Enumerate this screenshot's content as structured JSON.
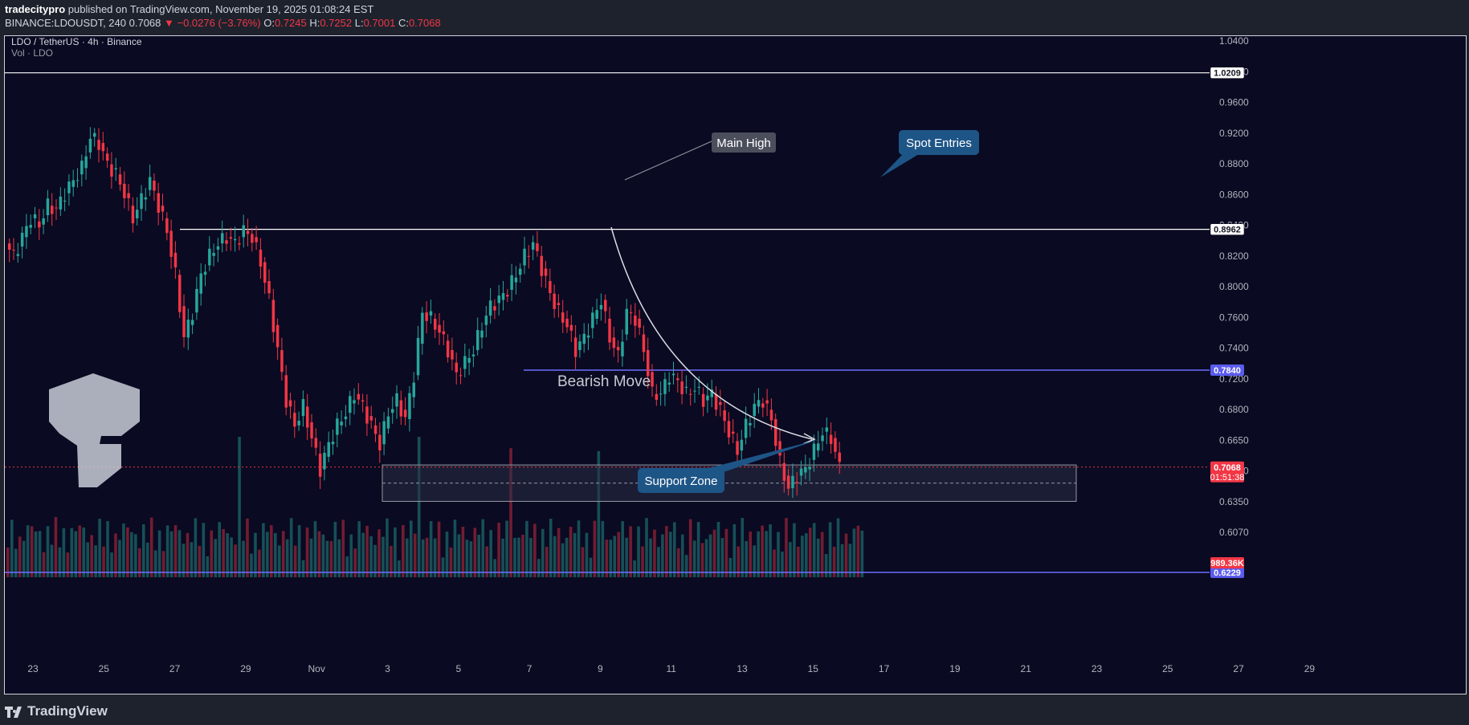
{
  "header": {
    "author": "tradecitypro",
    "published_text": " published on TradingView.com, November 19, 2025 01:08:24 EST",
    "symbol_line": "BINANCE:LDOUSDT, 240",
    "price": "0.7068",
    "change": "▼ −0.0276 (−3.76%)",
    "ohlc": {
      "o_label": "O:",
      "o": "0.7245",
      "h_label": "H:",
      "h": "0.7252",
      "l_label": "L:",
      "l": "0.7001",
      "c_label": "C:",
      "c": "0.7068"
    }
  },
  "legend": {
    "title": "LDO / TetherUS · 4h · Binance",
    "volume": "Vol · LDO"
  },
  "footer": {
    "brand": "TradingView"
  },
  "colors": {
    "bull": "#26a69a",
    "bear": "#f23645",
    "bg": "#0a0a22",
    "hline": "#ffffff",
    "blue_line": "#6c6cff",
    "zone_fill": "#2a2e45",
    "callout": "#1e5587",
    "label_grey": "#4b4f5c"
  },
  "chart_data": {
    "type": "candlestick",
    "title": "LDO / TetherUS · 4h · Binance",
    "ylim": [
      0.58,
      1.045
    ],
    "y_ticks": [
      "1.0400",
      "1.0000",
      "0.9600",
      "0.9200",
      "0.8800",
      "0.8600",
      "0.8400",
      "0.8200",
      "0.8000",
      "0.7600",
      "0.7400",
      "0.7200",
      "0.6800",
      "0.6650",
      "0.6500",
      "0.6350",
      "0.6070"
    ],
    "x_ticks": [
      "23",
      "25",
      "27",
      "29",
      "Nov",
      "3",
      "5",
      "7",
      "9",
      "11",
      "13",
      "15",
      "17",
      "19",
      "21",
      "23",
      "25",
      "27",
      "29"
    ],
    "price_labels": [
      {
        "value": "1.0209",
        "kind": "white"
      },
      {
        "value": "0.8962",
        "kind": "white"
      },
      {
        "value": "0.7840",
        "kind": "blue"
      },
      {
        "value": "0.7068",
        "kind": "red",
        "countdown": "01:51:38"
      },
      {
        "value": "0.6229",
        "kind": "blue"
      },
      {
        "value": "989.36K",
        "kind": "red"
      }
    ],
    "levels": {
      "top": 1.0209,
      "main": 0.8962,
      "mid": 0.784,
      "low": 0.6229,
      "current": 0.7068
    },
    "support_zone": {
      "top": 0.7085,
      "bottom": 0.6795,
      "mid": 0.694
    },
    "annotations": {
      "main_high": "Main High",
      "spot_entries": "Spot Entries",
      "bearish_move": "Bearish Move",
      "support_zone": "Support Zone"
    },
    "path": [
      0.885,
      0.875,
      0.89,
      0.905,
      0.9,
      0.915,
      0.912,
      0.925,
      0.935,
      0.945,
      0.97,
      0.965,
      0.948,
      0.94,
      0.925,
      0.905,
      0.92,
      0.935,
      0.915,
      0.895,
      0.86,
      0.81,
      0.83,
      0.86,
      0.875,
      0.885,
      0.89,
      0.885,
      0.895,
      0.89,
      0.87,
      0.84,
      0.8,
      0.76,
      0.74,
      0.755,
      0.73,
      0.705,
      0.725,
      0.74,
      0.75,
      0.765,
      0.755,
      0.74,
      0.725,
      0.75,
      0.76,
      0.745,
      0.78,
      0.83,
      0.825,
      0.815,
      0.8,
      0.78,
      0.79,
      0.8,
      0.82,
      0.835,
      0.84,
      0.848,
      0.86,
      0.875,
      0.885,
      0.865,
      0.845,
      0.83,
      0.82,
      0.8,
      0.81,
      0.825,
      0.84,
      0.81,
      0.795,
      0.83,
      0.825,
      0.8,
      0.765,
      0.765,
      0.78,
      0.775,
      0.765,
      0.77,
      0.76,
      0.765,
      0.752,
      0.735,
      0.72,
      0.74,
      0.755,
      0.76,
      0.745,
      0.71,
      0.69,
      0.7,
      0.705,
      0.72,
      0.735,
      0.73,
      0.7068
    ],
    "volume": {
      "max_label": "989.36K",
      "ylim": [
        0,
        1
      ]
    }
  }
}
